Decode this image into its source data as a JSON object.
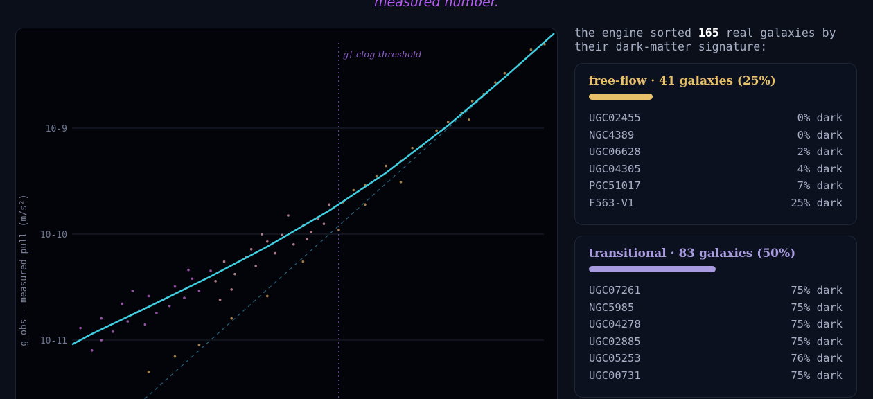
{
  "header": {
    "caption": "measured number."
  },
  "chart_data": {
    "type": "scatter",
    "y_label": "g_obs — measured pull  (m/s²)",
    "log_x": true,
    "log_y": true,
    "grid": true,
    "xlim": [
      6.8e-13,
      7.85e-09
    ],
    "ylim": [
      2.78e-12,
      8.87e-09
    ],
    "yticks": [
      {
        "value": 1e-09,
        "label": "10-9"
      },
      {
        "value": 1e-10,
        "label": "10-10"
      },
      {
        "value": 1e-11,
        "label": "10-11"
      }
    ],
    "threshold": {
      "value": 1.2e-10,
      "label": "g† clog threshold",
      "color": "#6a4a99"
    },
    "series": [
      {
        "color": "#c46ad6",
        "x": [
          8e-13,
          1e-12,
          1.2e-12,
          1.5e-12,
          1.8e-12,
          2e-12,
          2.5e-12,
          3e-12,
          3.5e-12,
          4e-12,
          5e-12,
          6e-12,
          7e-12,
          8e-12,
          1e-11,
          1.2e-12,
          2.2e-12,
          4.5e-12,
          2.8e-12,
          6.5e-12
        ],
        "y": [
          1.3e-11,
          8e-12,
          1.6e-11,
          1.2e-11,
          2.2e-11,
          1.5e-11,
          1.9e-11,
          2.6e-11,
          1.8e-11,
          2.4e-11,
          3.2e-11,
          2.5e-11,
          3.8e-11,
          2.9e-11,
          4.5e-11,
          1e-11,
          2.9e-11,
          2.1e-11,
          1.4e-11,
          4.6e-11
        ]
      },
      {
        "color": "#e2a0b0",
        "x": [
          1.1e-11,
          1.3e-11,
          1.6e-11,
          2e-11,
          2.4e-11,
          3e-11,
          3.5e-11,
          4e-11,
          5e-11,
          6e-11,
          7e-11,
          8e-11,
          9e-11,
          1e-10,
          1.5e-11,
          2.7e-11,
          4.5e-11,
          6.5e-11,
          1.2e-11,
          2.2e-11
        ],
        "y": [
          3.6e-11,
          5.5e-11,
          4.2e-11,
          6.1e-11,
          5e-11,
          8.5e-11,
          6.6e-11,
          9.8e-11,
          8e-11,
          1.2e-10,
          1.05e-10,
          1.4e-10,
          1.25e-10,
          1.9e-10,
          3e-11,
          1e-10,
          1.5e-10,
          9e-11,
          2.4e-11,
          7.2e-11
        ]
      },
      {
        "color": "#d8a860",
        "x": [
          1.3e-10,
          1.6e-10,
          2e-10,
          2.5e-10,
          3e-10,
          4e-10,
          5e-10,
          6e-10,
          8e-10,
          1e-09,
          1.3e-09,
          1.6e-09,
          2e-09,
          2.5e-09,
          3e-09,
          4e-09,
          5e-09,
          6.5e-09,
          3e-12,
          5e-12,
          8e-12,
          1.5e-11,
          3e-11,
          6e-11,
          1.2e-10,
          2e-10,
          4e-10,
          1.5e-09
        ],
        "y": [
          2e-10,
          2.6e-10,
          2.9e-10,
          3.5e-10,
          4.4e-10,
          4.9e-10,
          6.5e-10,
          6.8e-10,
          9.5e-10,
          1.15e-09,
          1.4e-09,
          1.8e-09,
          2.1e-09,
          2.7e-09,
          3.3e-09,
          4e-09,
          5.5e-09,
          6.2e-09,
          5e-12,
          7e-12,
          9e-12,
          1.6e-11,
          2.6e-11,
          5.5e-11,
          1.1e-10,
          1.9e-10,
          3.1e-10,
          1.2e-09
        ]
      }
    ],
    "fit_line": {
      "color": "#3fcfe0",
      "x": [
        6.8e-13,
        1e-12,
        3e-12,
        1e-11,
        3e-11,
        1e-10,
        3e-10,
        1e-09,
        3e-09,
        7.85e-09
      ],
      "y": [
        9.1e-12,
        1.145e-11,
        2.06e-11,
        3.99e-11,
        7.62e-11,
        1.67e-10,
        3.78e-10,
        1.059e-09,
        3.02e-09,
        7.86e-09
      ]
    }
  },
  "summary": {
    "prefix": "the engine sorted",
    "count": 165,
    "suffix": "real galaxies by their dark-matter signature:"
  },
  "groups": [
    {
      "title": "free-flow · 41 galaxies (25%)",
      "share": 25,
      "color": "#e8c06a",
      "rows": [
        [
          "UGC02455",
          "0% dark"
        ],
        [
          "NGC4389",
          "0% dark"
        ],
        [
          "UGC06628",
          "2% dark"
        ],
        [
          "UGC04305",
          "4% dark"
        ],
        [
          "PGC51017",
          "7% dark"
        ],
        [
          "F563-V1",
          "25% dark"
        ]
      ]
    },
    {
      "title": "transitional · 83 galaxies (50%)",
      "share": 50,
      "color": "#a99be0",
      "rows": [
        [
          "UGC07261",
          "75% dark"
        ],
        [
          "NGC5985",
          "75% dark"
        ],
        [
          "UGC04278",
          "75% dark"
        ],
        [
          "UGC02885",
          "75% dark"
        ],
        [
          "UGC05253",
          "76% dark"
        ],
        [
          "UGC00731",
          "75% dark"
        ]
      ]
    }
  ]
}
